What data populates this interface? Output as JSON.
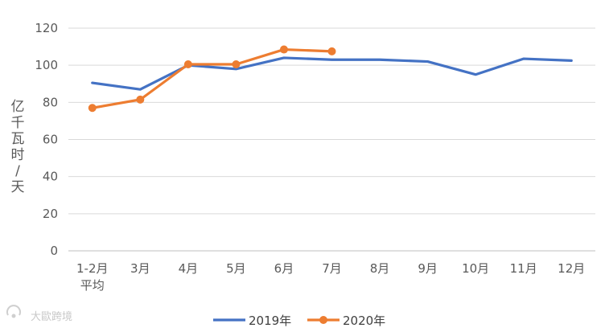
{
  "chart_data": {
    "type": "line",
    "title": "",
    "xlabel": "",
    "ylabel": "亿千瓦时/天",
    "ylim": [
      0,
      120
    ],
    "yticks": [
      0,
      20,
      40,
      60,
      80,
      100,
      120
    ],
    "grid": true,
    "legend_position": "bottom",
    "categories": [
      "1-2月\n平均",
      "3月",
      "4月",
      "5月",
      "6月",
      "7月",
      "8月",
      "9月",
      "10月",
      "11月",
      "12月"
    ],
    "series": [
      {
        "name": "2019年",
        "color": "#4472C4",
        "markers": false,
        "values": [
          90.5,
          87,
          100,
          98,
          104,
          103,
          103,
          102,
          95,
          103.5,
          102.5
        ]
      },
      {
        "name": "2020年",
        "color": "#ED7D31",
        "markers": true,
        "values": [
          77,
          81.5,
          100.5,
          100.5,
          108.5,
          107.5,
          null,
          null,
          null,
          null,
          null
        ]
      }
    ]
  },
  "watermark": {
    "text": "大歐跨境",
    "icon": "watermark-logo-icon"
  }
}
